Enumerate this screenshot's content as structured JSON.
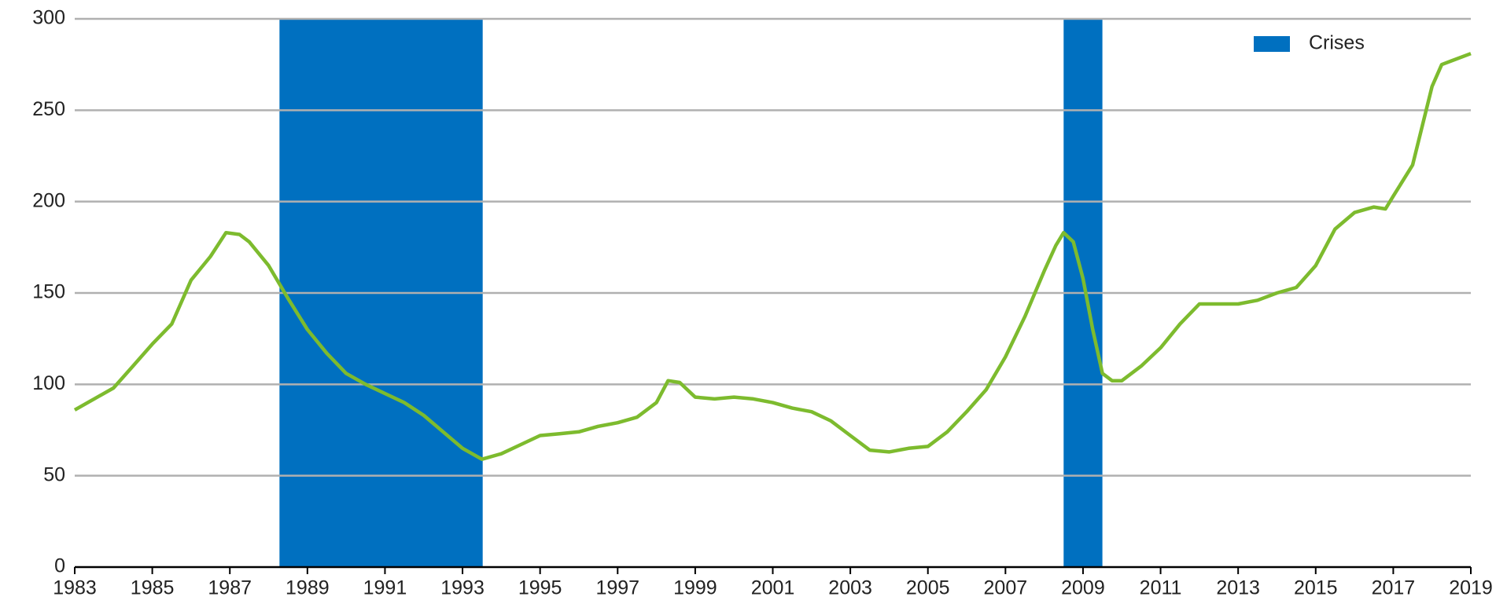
{
  "chart_data": {
    "type": "line",
    "x": [
      1983,
      1983.5,
      1984,
      1984.5,
      1985,
      1985.5,
      1986,
      1986.5,
      1986.9,
      1987.25,
      1987.5,
      1988,
      1988.5,
      1989,
      1989.5,
      1990,
      1990.5,
      1991,
      1991.5,
      1992,
      1992.5,
      1993,
      1993.5,
      1994,
      1994.5,
      1995,
      1995.5,
      1996,
      1996.5,
      1997,
      1997.5,
      1998,
      1998.3,
      1998.6,
      1999,
      1999.5,
      2000,
      2000.5,
      2001,
      2001.5,
      2002,
      2002.5,
      2003,
      2003.5,
      2004,
      2004.5,
      2005,
      2005.5,
      2006,
      2006.5,
      2007,
      2007.5,
      2008,
      2008.3,
      2008.5,
      2008.75,
      2009,
      2009.25,
      2009.5,
      2009.75,
      2010,
      2010.5,
      2011,
      2011.5,
      2012,
      2012.5,
      2013,
      2013.5,
      2014,
      2014.5,
      2015,
      2015.5,
      2016,
      2016.5,
      2016.8,
      2017,
      2017.5,
      2018,
      2018.25,
      2018.5,
      2019
    ],
    "values": [
      86,
      92,
      98,
      110,
      122,
      133,
      157,
      170,
      183,
      182,
      178,
      165,
      147,
      130,
      117,
      106,
      100,
      95,
      90,
      83,
      74,
      65,
      59,
      62,
      67,
      72,
      73,
      74,
      77,
      79,
      82,
      90,
      102,
      101,
      93,
      92,
      93,
      92,
      90,
      87,
      85,
      80,
      72,
      64,
      63,
      65,
      66,
      74,
      85,
      97,
      115,
      137,
      162,
      176,
      183,
      178,
      158,
      130,
      106,
      102,
      102,
      110,
      120,
      133,
      144,
      144,
      144,
      146,
      150,
      153,
      165,
      185,
      194,
      197,
      196,
      203,
      220,
      263,
      275,
      277,
      281
    ],
    "color": "#7dbb2e",
    "shaded_periods": {
      "name": "Crises",
      "color": "#0070c0",
      "ranges": [
        [
          1988.28,
          1993.52
        ],
        [
          2008.5,
          2009.5
        ]
      ]
    },
    "xlim": [
      1983,
      2019
    ],
    "xticks": [
      1983,
      1985,
      1987,
      1989,
      1991,
      1993,
      1995,
      1997,
      1999,
      2001,
      2003,
      2005,
      2007,
      2009,
      2011,
      2013,
      2015,
      2017,
      2019
    ],
    "ylim": [
      0,
      300
    ],
    "yticks": [
      0,
      50,
      100,
      150,
      200,
      250,
      300
    ],
    "grid": true,
    "legend": "upper right"
  }
}
